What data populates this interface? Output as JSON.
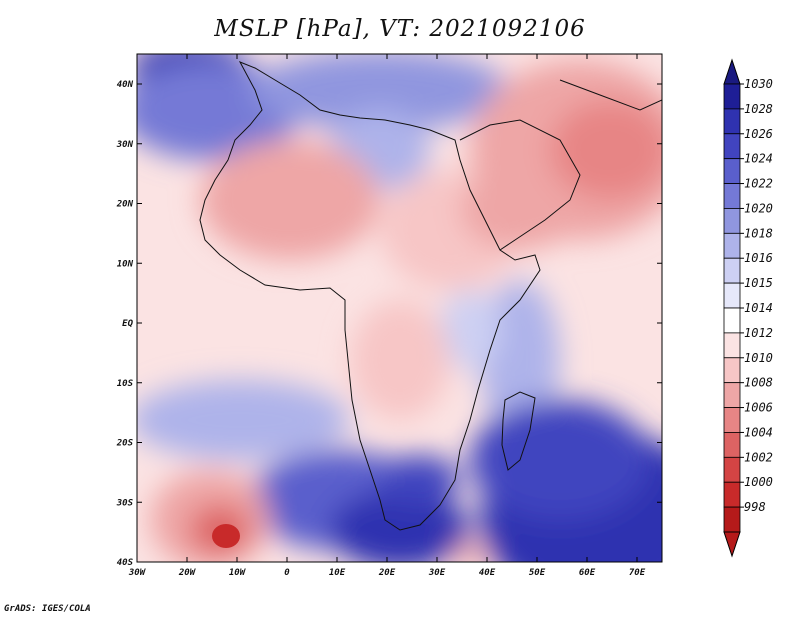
{
  "title": "MSLP [hPa], VT: 2021092106",
  "credit": "GrADS: IGES/COLA",
  "map": {
    "lon_labels": [
      "30W",
      "20W",
      "10W",
      "0",
      "10E",
      "20E",
      "30E",
      "40E",
      "50E",
      "60E",
      "70E"
    ],
    "lat_labels": [
      "40N",
      "30N",
      "20N",
      "10N",
      "EQ",
      "10S",
      "20S",
      "30S",
      "40S"
    ]
  },
  "colorbar": {
    "labels": [
      "1030",
      "1028",
      "1026",
      "1024",
      "1022",
      "1020",
      "1018",
      "1016",
      "1015",
      "1014",
      "1012",
      "1010",
      "1008",
      "1006",
      "1004",
      "1002",
      "1000",
      "998"
    ],
    "colors": [
      "#1e1e96",
      "#2f32b0",
      "#4144bf",
      "#5a5fcc",
      "#7479d6",
      "#9096df",
      "#aeb3ea",
      "#cdd0f3",
      "#e6e8fa",
      "#ffffff",
      "#fbe3e3",
      "#f7c6c6",
      "#eea6a6",
      "#e78585",
      "#dd6363",
      "#d44444",
      "#c82a2a",
      "#b51a1a"
    ],
    "top_arrow_color": "#1a1a80",
    "bottom_arrow_color": "#b51a1a"
  }
}
